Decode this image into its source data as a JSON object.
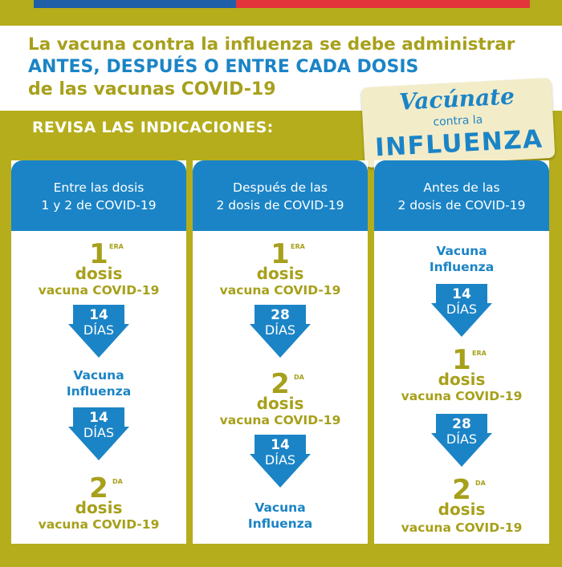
{
  "headline": {
    "line1": "La vacuna contra la influenza se debe administrar",
    "line2": "ANTES, DESPUÉS O ENTRE CADA DOSIS",
    "line3": "de las vacunas COVID-19"
  },
  "subheading": "REVISA LAS INDICACIONES:",
  "badge": {
    "line1": "Vacúnate",
    "line2": "contra la",
    "line3": "INFLUENZA"
  },
  "colors": {
    "olive": "#b5ad1c",
    "text_olive": "#a7a01b",
    "blue": "#1b84c6",
    "flag_blue": "#1e5fa8",
    "flag_red": "#e4343b",
    "badge_bg": "#f3ecc9"
  },
  "columns": [
    {
      "header": [
        "Entre las dosis",
        "1 y 2 de COVID-19"
      ],
      "step1": {
        "number": "1",
        "sup": "ERA",
        "dosis": "dosis",
        "vaccine": "vacuna COVID-19"
      },
      "arrow1": {
        "number": "14",
        "unit": "DÍAS"
      },
      "flu": [
        "Vacuna",
        "Influenza"
      ],
      "arrow2": {
        "number": "14",
        "unit": "DÍAS"
      },
      "step2": {
        "number": "2",
        "sup": "DA",
        "dosis": "dosis",
        "vaccine": "vacuna COVID-19"
      }
    },
    {
      "header": [
        "Después de las",
        "2 dosis de COVID-19"
      ],
      "step1": {
        "number": "1",
        "sup": "ERA",
        "dosis": "dosis",
        "vaccine": "vacuna COVID-19"
      },
      "arrow1": {
        "number": "28",
        "unit": "DÍAS"
      },
      "step2": {
        "number": "2",
        "sup": "DA",
        "dosis": "dosis",
        "vaccine": "vacuna COVID-19"
      },
      "arrow2": {
        "number": "14",
        "unit": "DÍAS"
      },
      "flu": [
        "Vacuna",
        "Influenza"
      ]
    },
    {
      "header": [
        "Antes de las",
        "2 dosis de COVID-19"
      ],
      "flu": [
        "Vacuna",
        "Influenza"
      ],
      "arrow1": {
        "number": "14",
        "unit": "DÍAS"
      },
      "step1": {
        "number": "1",
        "sup": "ERA",
        "dosis": "dosis",
        "vaccine": "vacuna COVID-19"
      },
      "arrow2": {
        "number": "28",
        "unit": "DÍAS"
      },
      "step2": {
        "number": "2",
        "sup": "DA",
        "dosis": "dosis",
        "vaccine": "vacuna COVID-19"
      }
    }
  ]
}
